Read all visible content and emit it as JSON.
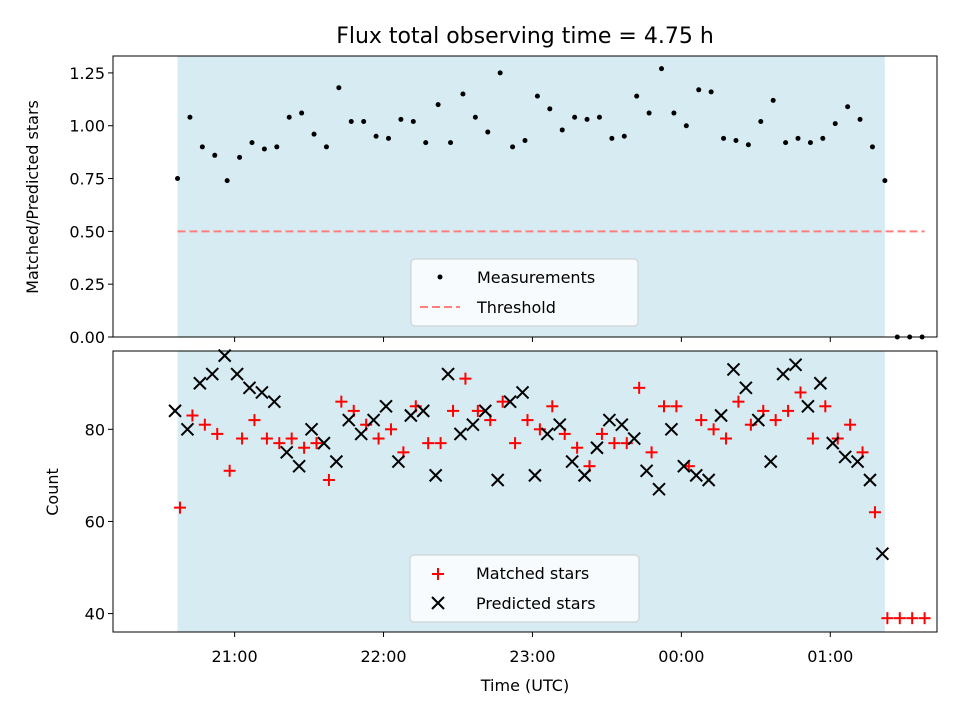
{
  "chart_data": [
    {
      "type": "scatter",
      "title": "Flux total observing time = 4.75 h",
      "ylabel": "Matched/Predicted stars",
      "xlabel": "",
      "ylim": [
        0.0,
        1.33
      ],
      "yticks": [
        0.0,
        0.25,
        0.5,
        0.75,
        1.0,
        1.25
      ],
      "ytick_labels": [
        "0.00",
        "0.25",
        "0.50",
        "0.75",
        "1.00",
        "1.25"
      ],
      "observing_window": [
        "20:37",
        "01:22"
      ],
      "legend": {
        "position": "lower center",
        "entries": [
          "Measurements",
          "Threshold"
        ]
      },
      "threshold": {
        "name": "Threshold",
        "y": 0.5,
        "x_range": [
          "20:37",
          "01:38"
        ],
        "color": "#ff7f7f"
      },
      "series": [
        {
          "name": "Measurements",
          "marker": "dot",
          "color": "#000000",
          "x": [
            "20:37",
            "20:42",
            "20:47",
            "20:52",
            "20:57",
            "21:02",
            "21:07",
            "21:12",
            "21:17",
            "21:22",
            "21:27",
            "21:32",
            "21:37",
            "21:42",
            "21:47",
            "21:52",
            "21:57",
            "22:02",
            "22:07",
            "22:12",
            "22:17",
            "22:22",
            "22:27",
            "22:32",
            "22:37",
            "22:42",
            "22:47",
            "22:52",
            "22:57",
            "23:02",
            "23:07",
            "23:12",
            "23:17",
            "23:22",
            "23:27",
            "23:32",
            "23:37",
            "23:42",
            "23:47",
            "23:52",
            "23:57",
            "00:02",
            "00:07",
            "00:12",
            "00:17",
            "00:22",
            "00:27",
            "00:32",
            "00:37",
            "00:42",
            "00:47",
            "00:52",
            "00:57",
            "01:02",
            "01:07",
            "01:12",
            "01:17",
            "01:22",
            "01:27",
            "01:32",
            "01:37"
          ],
          "y": [
            0.75,
            1.04,
            0.9,
            0.86,
            0.74,
            0.85,
            0.92,
            0.89,
            0.9,
            1.04,
            1.06,
            0.96,
            0.9,
            1.18,
            1.02,
            1.02,
            0.95,
            0.94,
            1.03,
            1.02,
            0.92,
            1.1,
            0.92,
            1.15,
            1.04,
            0.97,
            1.25,
            0.9,
            0.93,
            1.14,
            1.08,
            0.98,
            1.04,
            1.03,
            1.04,
            0.94,
            0.95,
            1.14,
            1.06,
            1.27,
            1.06,
            1.0,
            1.17,
            1.16,
            0.94,
            0.93,
            0.91,
            1.02,
            1.12,
            0.92,
            0.94,
            0.92,
            0.94,
            1.01,
            1.09,
            1.03,
            0.9,
            0.74,
            0.0,
            0.0,
            0.0
          ]
        }
      ]
    },
    {
      "type": "scatter",
      "title": "",
      "ylabel": "Count",
      "xlabel": "Time (UTC)",
      "ylim": [
        36,
        97
      ],
      "yticks": [
        40,
        60,
        80
      ],
      "xticks": [
        "21:00",
        "22:00",
        "23:00",
        "00:00",
        "01:00"
      ],
      "observing_window": [
        "20:37",
        "01:22"
      ],
      "legend": {
        "position": "lower center",
        "entries": [
          "Matched stars",
          "Predicted stars"
        ]
      },
      "x": [
        "20:37",
        "20:42",
        "20:47",
        "20:52",
        "20:57",
        "21:02",
        "21:07",
        "21:12",
        "21:17",
        "21:22",
        "21:27",
        "21:32",
        "21:37",
        "21:42",
        "21:47",
        "21:52",
        "21:57",
        "22:02",
        "22:07",
        "22:12",
        "22:17",
        "22:22",
        "22:27",
        "22:32",
        "22:37",
        "22:42",
        "22:47",
        "22:52",
        "22:57",
        "23:02",
        "23:07",
        "23:12",
        "23:17",
        "23:22",
        "23:27",
        "23:32",
        "23:37",
        "23:42",
        "23:47",
        "23:52",
        "23:57",
        "00:02",
        "00:07",
        "00:12",
        "00:17",
        "00:22",
        "00:27",
        "00:32",
        "00:37",
        "00:42",
        "00:47",
        "00:52",
        "00:57",
        "01:02",
        "01:07",
        "01:12",
        "01:17",
        "01:22",
        "01:27",
        "01:32",
        "01:37"
      ],
      "series": [
        {
          "name": "Matched stars",
          "marker": "plus",
          "color": "#ff0000",
          "values": [
            63,
            83,
            81,
            79,
            71,
            78,
            82,
            78,
            77,
            78,
            76,
            77,
            69,
            86,
            84,
            81,
            78,
            80,
            75,
            85,
            77,
            77,
            84,
            91,
            84,
            82,
            86,
            77,
            82,
            80,
            85,
            79,
            76,
            72,
            79,
            77,
            77,
            89,
            75,
            85,
            85,
            72,
            82,
            80,
            78,
            86,
            81,
            84,
            82,
            84,
            88,
            78,
            85,
            78,
            81,
            75,
            62,
            39,
            39,
            39,
            39
          ],
          "offset_minutes": 1
        },
        {
          "name": "Predicted stars",
          "marker": "x",
          "color": "#000000",
          "values": [
            84,
            80,
            90,
            92,
            96,
            92,
            89,
            88,
            86,
            75,
            72,
            80,
            77,
            73,
            82,
            79,
            82,
            85,
            73,
            83,
            84,
            70,
            92,
            79,
            81,
            84,
            69,
            86,
            88,
            70,
            79,
            81,
            73,
            70,
            76,
            82,
            81,
            78,
            71,
            67,
            80,
            72,
            70,
            69,
            83,
            93,
            89,
            82,
            73,
            92,
            94,
            85,
            90,
            77,
            74,
            73,
            69,
            53,
            null,
            null,
            null
          ],
          "offset_minutes": -1
        }
      ]
    }
  ]
}
